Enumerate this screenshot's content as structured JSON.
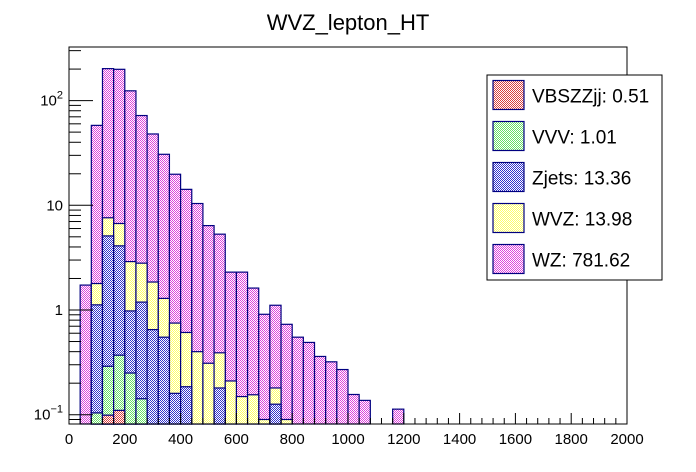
{
  "chart_data": {
    "type": "bar",
    "subtype": "stacked-histogram",
    "title": "WVZ_lepton_HT",
    "xlabel": "",
    "ylabel": "",
    "xlim": [
      0,
      2000
    ],
    "ylim": [
      0.08,
      330
    ],
    "yscale": "log",
    "bin_width": 40,
    "x_ticks": [
      "0",
      "200",
      "400",
      "600",
      "800",
      "1000",
      "1200",
      "1400",
      "1600",
      "1800",
      "2000"
    ],
    "x_tick_values": [
      0,
      200,
      400,
      600,
      800,
      1000,
      1200,
      1400,
      1600,
      1800,
      2000
    ],
    "y_ticks": [
      {
        "value": 0.1,
        "base": "10",
        "exp": "−1"
      },
      {
        "value": 1,
        "label": "1"
      },
      {
        "value": 10,
        "label": "10"
      },
      {
        "value": 100,
        "base": "10",
        "exp": "2"
      }
    ],
    "grid": false,
    "legend_position": "top-right",
    "values_are_cumulative_stack_tops": true,
    "bin_low_edges": [
      40,
      80,
      120,
      160,
      200,
      240,
      280,
      320,
      360,
      400,
      440,
      480,
      520,
      560,
      600,
      640,
      680,
      720,
      760,
      800,
      840,
      880,
      920,
      960,
      1000,
      1040,
      1160
    ],
    "series": [
      {
        "name": "VBSZZjj",
        "legend": "VBSZZjj: 0.51",
        "color": "#d94040",
        "values": [
          0,
          0,
          0.099,
          0.11,
          0,
          0,
          0,
          0,
          0,
          0,
          0,
          0,
          0,
          0,
          0,
          0,
          0,
          0,
          0,
          0,
          0,
          0,
          0,
          0,
          0,
          0,
          0
        ]
      },
      {
        "name": "VVV",
        "legend": "VVV: 1.01",
        "color": "#66e066",
        "values": [
          0,
          0.104,
          0.29,
          0.37,
          0.25,
          0.142,
          0,
          0,
          0,
          0,
          0,
          0,
          0,
          0,
          0,
          0,
          0,
          0,
          0,
          0,
          0,
          0,
          0,
          0,
          0,
          0,
          0
        ]
      },
      {
        "name": "Zjets",
        "legend": "Zjets: 13.36",
        "color": "#3333cc",
        "values": [
          0,
          1.12,
          5.1,
          4.1,
          0.98,
          1.19,
          0.65,
          0.55,
          0.16,
          0.185,
          0,
          0,
          0.18,
          0,
          0,
          0,
          0,
          0.126,
          0,
          0,
          0,
          0,
          0,
          0,
          0,
          0,
          0
        ]
      },
      {
        "name": "WVZ",
        "legend": "WVZ: 13.98",
        "color": "#ffff66",
        "values": [
          0,
          1.79,
          7.6,
          6.7,
          2.9,
          2.8,
          1.85,
          1.29,
          0.75,
          0.61,
          0.4,
          0.31,
          0.39,
          0.21,
          0.149,
          0.155,
          0.09,
          0.18,
          0.09,
          0,
          0,
          0,
          0,
          0,
          0,
          0,
          0
        ]
      },
      {
        "name": "WZ",
        "legend": "WZ: 781.62",
        "color": "#dd44dd",
        "values": [
          1.73,
          58,
          202,
          199,
          124,
          72,
          48,
          30.7,
          19.8,
          14.2,
          10.4,
          6.4,
          5.3,
          2.3,
          2.3,
          1.62,
          0.91,
          1.11,
          0.73,
          0.55,
          0.49,
          0.36,
          0.32,
          0.27,
          0.156,
          0.137,
          0.113
        ]
      }
    ],
    "legend_order": [
      "VBSZZjj",
      "VVV",
      "Zjets",
      "WVZ",
      "WZ"
    ],
    "edge_color": "#000080"
  }
}
